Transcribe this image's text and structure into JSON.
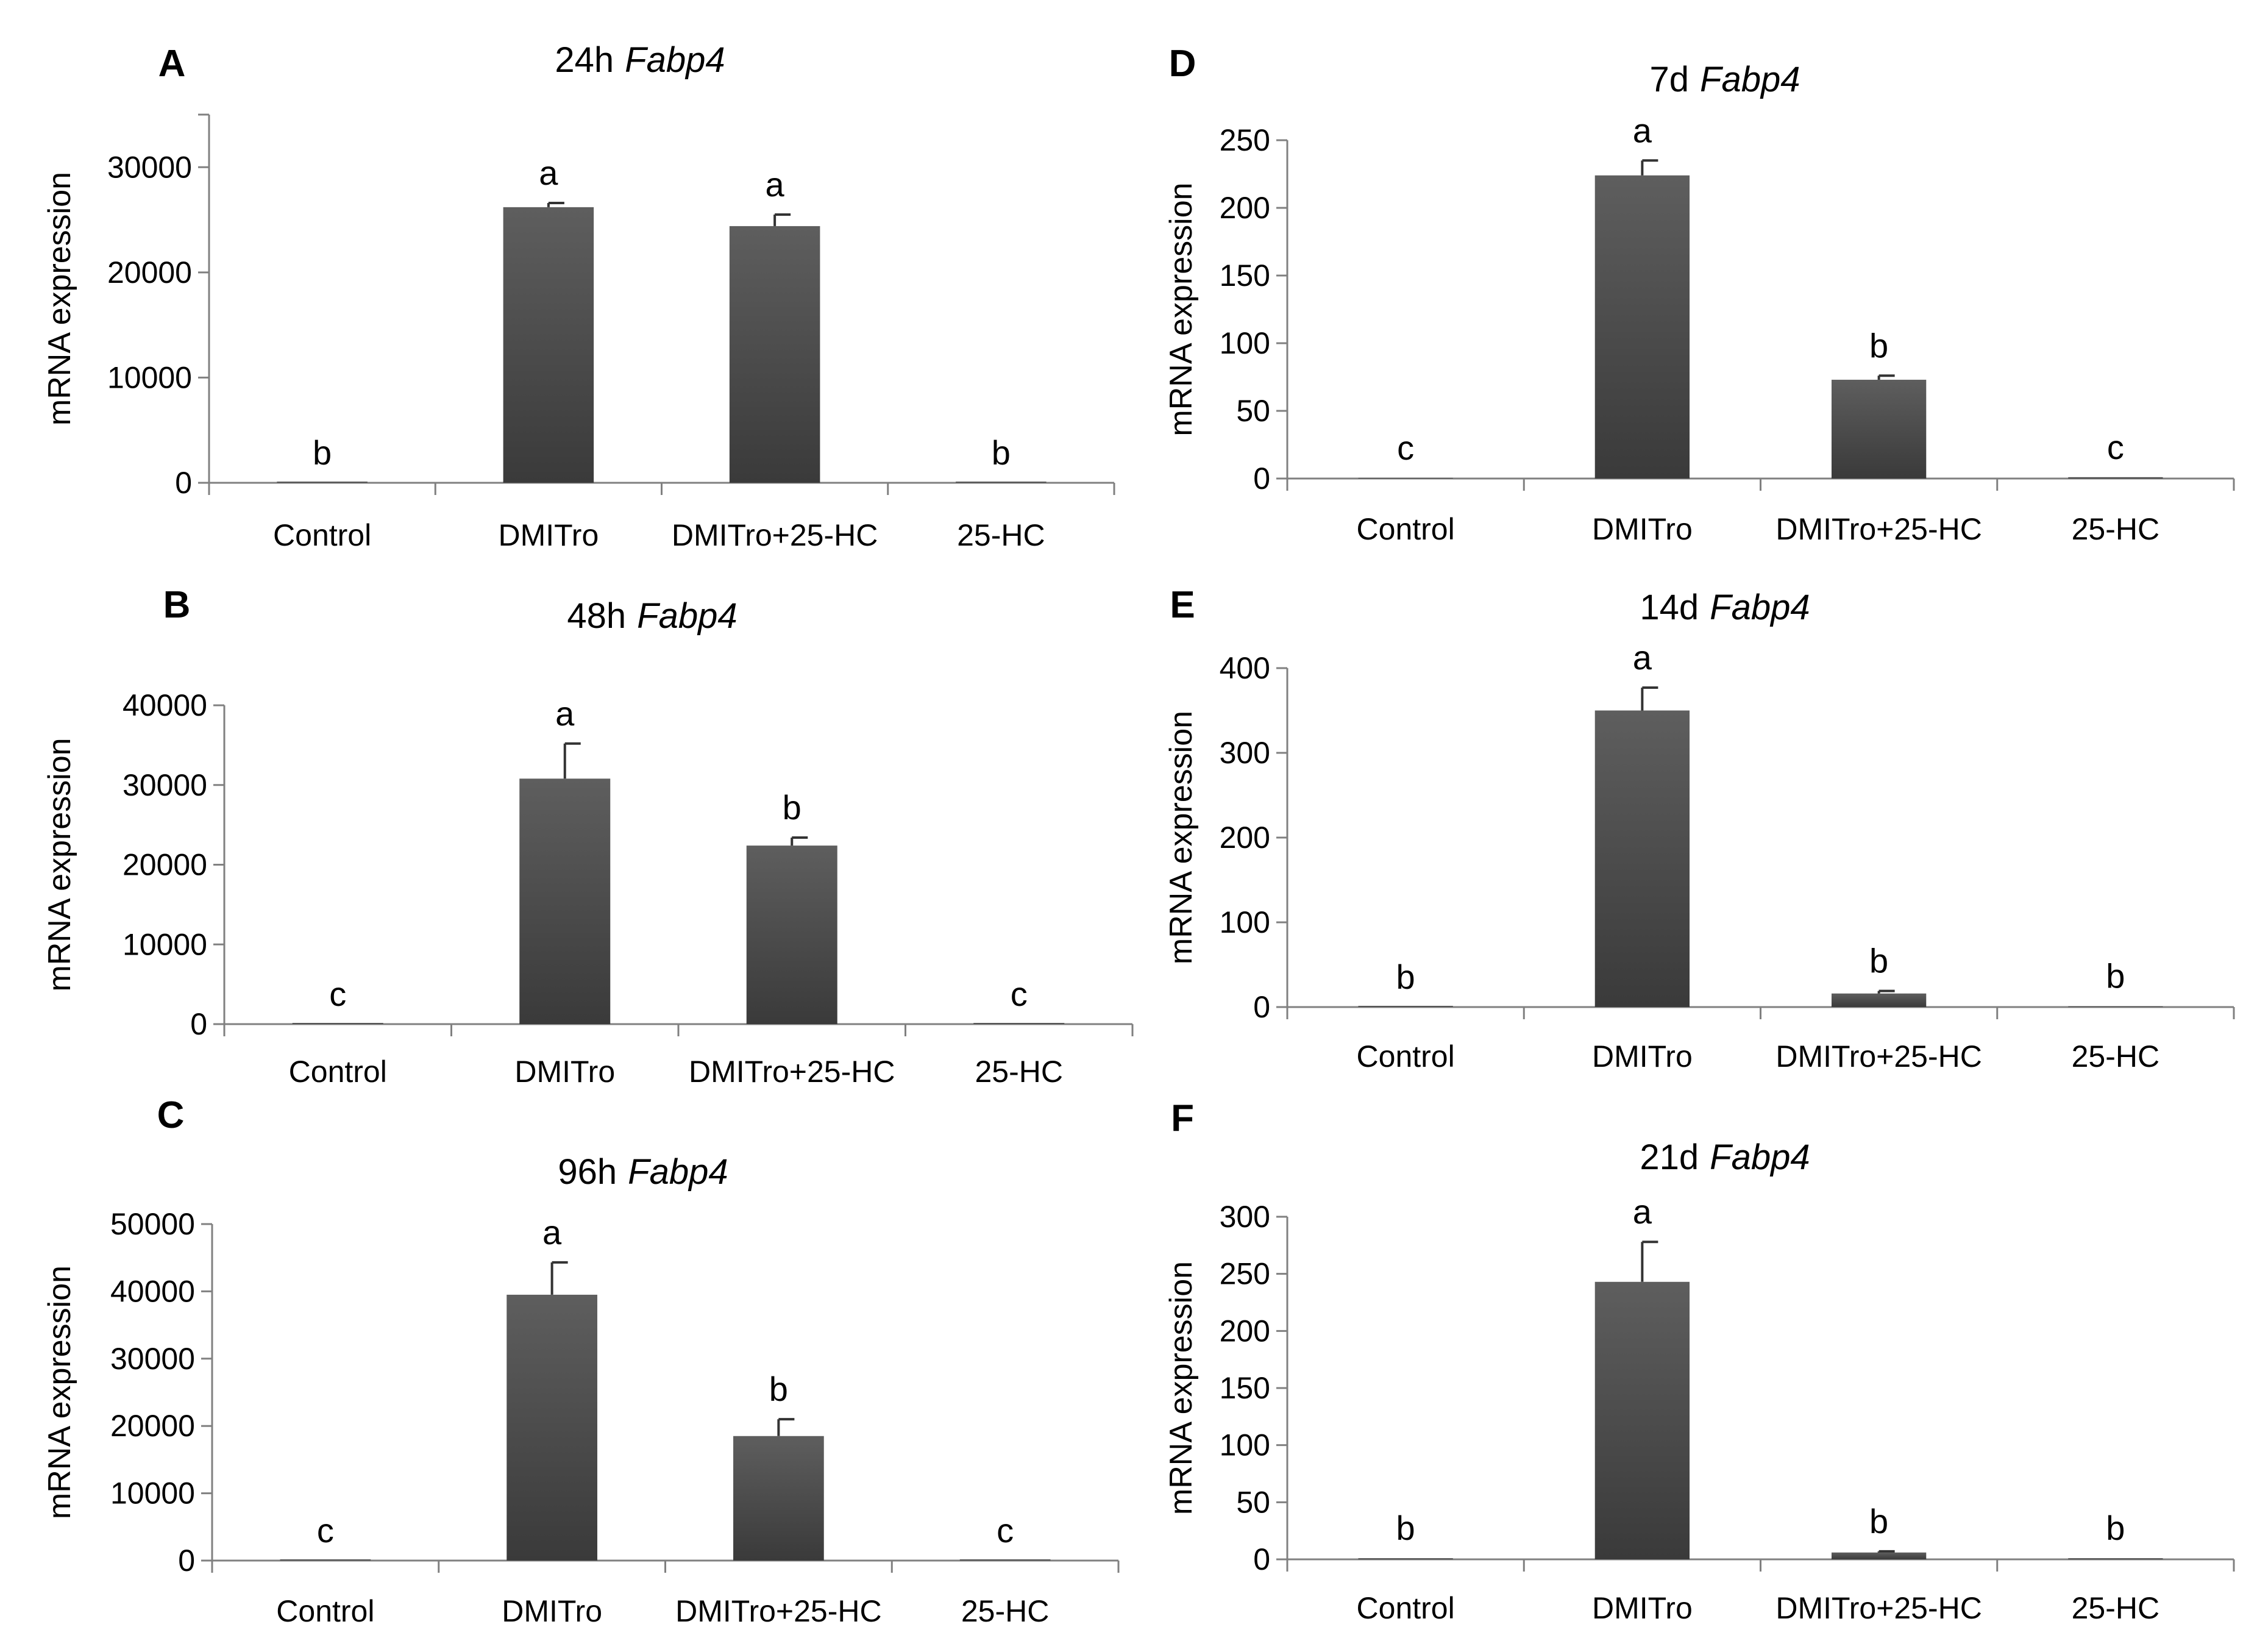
{
  "chart_data": [
    {
      "type": "bar",
      "panel": "A",
      "title": "24h",
      "gene": "Fabp4",
      "ylabel": "mRNA expression",
      "categories": [
        "Control",
        "DMITro",
        "DMITro+25-HC",
        "25-HC"
      ],
      "values": [
        0,
        26200,
        24400,
        0
      ],
      "errors": [
        0,
        400,
        1100,
        0
      ],
      "significance": [
        "b",
        "a",
        "a",
        "b"
      ],
      "ylim": [
        0,
        30000
      ],
      "yticks": [
        0,
        10000,
        20000,
        30000
      ],
      "ymax_axis": 35000
    },
    {
      "type": "bar",
      "panel": "B",
      "title": "48h",
      "gene": "Fabp4",
      "ylabel": "mRNA expression",
      "categories": [
        "Control",
        "DMITro",
        "DMITro+25-HC",
        "25-HC"
      ],
      "values": [
        0,
        30800,
        22400,
        0
      ],
      "errors": [
        0,
        4400,
        1000,
        0
      ],
      "significance": [
        "c",
        "a",
        "b",
        "c"
      ],
      "ylim": [
        0,
        40000
      ],
      "yticks": [
        0,
        10000,
        20000,
        30000,
        40000
      ],
      "ymax_axis": 40000
    },
    {
      "type": "bar",
      "panel": "C",
      "title": "96h",
      "gene": "Fabp4",
      "ylabel": "mRNA expression",
      "categories": [
        "Control",
        "DMITro",
        "DMITro+25-HC",
        "25-HC"
      ],
      "values": [
        0,
        39500,
        18500,
        0
      ],
      "errors": [
        0,
        4800,
        2500,
        0
      ],
      "significance": [
        "c",
        "a",
        "b",
        "c"
      ],
      "ylim": [
        0,
        50000
      ],
      "yticks": [
        0,
        10000,
        20000,
        30000,
        40000,
        50000
      ],
      "ymax_axis": 50000
    },
    {
      "type": "bar",
      "panel": "D",
      "title": "7d",
      "gene": "Fabp4",
      "ylabel": "mRNA expression",
      "categories": [
        "Control",
        "DMITro",
        "DMITro+25-HC",
        "25-HC"
      ],
      "values": [
        0.5,
        224,
        73,
        1
      ],
      "errors": [
        0,
        11,
        3,
        0
      ],
      "significance": [
        "c",
        "a",
        "b",
        "c"
      ],
      "ylim": [
        0,
        250
      ],
      "yticks": [
        0,
        50,
        100,
        150,
        200,
        250
      ],
      "ymax_axis": 250
    },
    {
      "type": "bar",
      "panel": "E",
      "title": "14d",
      "gene": "Fabp4",
      "ylabel": "mRNA expression",
      "categories": [
        "Control",
        "DMITro",
        "DMITro+25-HC",
        "25-HC"
      ],
      "values": [
        0,
        350,
        16,
        1
      ],
      "errors": [
        0,
        27,
        3,
        0
      ],
      "significance": [
        "b",
        "a",
        "b",
        "b"
      ],
      "ylim": [
        0,
        400
      ],
      "yticks": [
        0,
        100,
        200,
        300,
        400
      ],
      "ymax_axis": 400
    },
    {
      "type": "bar",
      "panel": "F",
      "title": "21d",
      "gene": "Fabp4",
      "ylabel": "mRNA expression",
      "categories": [
        "Control",
        "DMITro",
        "DMITro+25-HC",
        "25-HC"
      ],
      "values": [
        1,
        243,
        6,
        1
      ],
      "errors": [
        0,
        35,
        1,
        0
      ],
      "significance": [
        "b",
        "a",
        "b",
        "b"
      ],
      "ylim": [
        0,
        300
      ],
      "yticks": [
        0,
        50,
        100,
        150,
        200,
        250,
        300
      ],
      "ymax_axis": 300
    }
  ],
  "colors": {
    "bar_top": "#5c5c5c",
    "bar_bottom": "#3a3a3a",
    "axis": "#808080",
    "text": "#000000"
  }
}
